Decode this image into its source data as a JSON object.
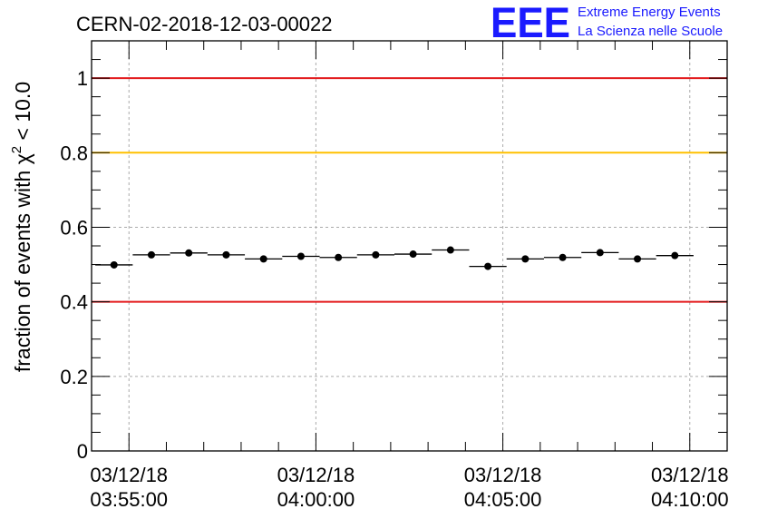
{
  "chart_data": {
    "type": "scatter",
    "title": "CERN-02-2018-12-03-00022",
    "ylabel_prefix": "fraction of events with ",
    "ylabel_symbol": "χ",
    "ylabel_sup": "2",
    "ylabel_suffix": " < 10.0",
    "xlabel": "",
    "ylim": [
      0,
      1.1
    ],
    "yticks": [
      0,
      0.2,
      0.4,
      0.6,
      0.8,
      1
    ],
    "ytick_labels": [
      "0",
      "0.2",
      "0.4",
      "0.6",
      "0.8",
      "1"
    ],
    "xlim": [
      "03:54:00",
      "04:11:00"
    ],
    "xticks": [
      {
        "t": "03:55:00",
        "date": "03/12/18",
        "time": "03:55:00"
      },
      {
        "t": "04:00:00",
        "date": "03/12/18",
        "time": "04:00:00"
      },
      {
        "t": "04:05:00",
        "date": "03/12/18",
        "time": "04:05:00"
      },
      {
        "t": "04:10:00",
        "date": "03/12/18",
        "time": "04:10:00"
      }
    ],
    "grid": true,
    "reference_lines": [
      {
        "y": 1.0,
        "color": "#e31a1c"
      },
      {
        "y": 0.8,
        "color": "#ffc000"
      },
      {
        "y": 0.4,
        "color": "#e31a1c"
      }
    ],
    "points": [
      {
        "x_start": "03:54:06",
        "x_end": "03:55:06",
        "y": 0.499
      },
      {
        "x_start": "03:55:06",
        "x_end": "03:56:06",
        "y": 0.526
      },
      {
        "x_start": "03:56:06",
        "x_end": "03:57:06",
        "y": 0.531
      },
      {
        "x_start": "03:57:06",
        "x_end": "03:58:06",
        "y": 0.526
      },
      {
        "x_start": "03:58:06",
        "x_end": "03:59:06",
        "y": 0.515
      },
      {
        "x_start": "03:59:06",
        "x_end": "04:00:06",
        "y": 0.522
      },
      {
        "x_start": "04:00:06",
        "x_end": "04:01:06",
        "y": 0.519
      },
      {
        "x_start": "04:01:06",
        "x_end": "04:02:06",
        "y": 0.526
      },
      {
        "x_start": "04:02:06",
        "x_end": "04:03:06",
        "y": 0.528
      },
      {
        "x_start": "04:03:06",
        "x_end": "04:04:06",
        "y": 0.539
      },
      {
        "x_start": "04:04:06",
        "x_end": "04:05:06",
        "y": 0.495
      },
      {
        "x_start": "04:05:06",
        "x_end": "04:06:06",
        "y": 0.515
      },
      {
        "x_start": "04:06:06",
        "x_end": "04:07:06",
        "y": 0.519
      },
      {
        "x_start": "04:07:06",
        "x_end": "04:08:06",
        "y": 0.532
      },
      {
        "x_start": "04:08:06",
        "x_end": "04:09:06",
        "y": 0.515
      },
      {
        "x_start": "04:09:06",
        "x_end": "04:10:06",
        "y": 0.524
      }
    ]
  },
  "logo": {
    "mark": "EEE",
    "line1": "Extreme Energy Events",
    "line2": "La Scienza nelle Scuole",
    "color": "#1a1aff"
  }
}
